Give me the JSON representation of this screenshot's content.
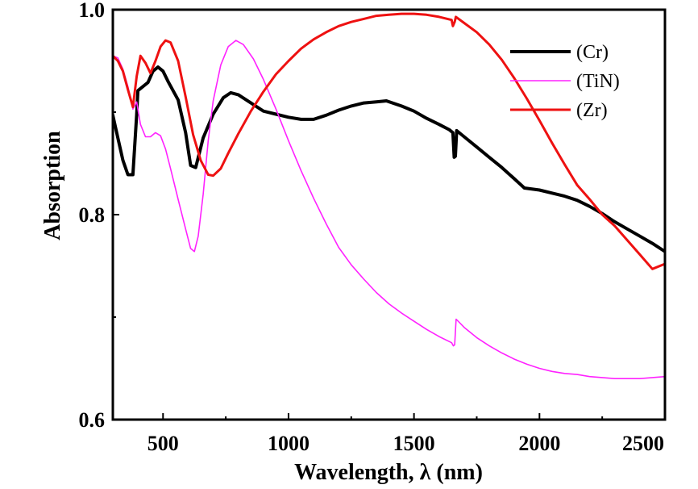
{
  "chart_data": {
    "type": "line",
    "xlabel": "Wavelength, λ (nm)",
    "ylabel": "Absorption",
    "xlim": [
      300,
      2500
    ],
    "ylim": [
      0.6,
      1.0
    ],
    "xticks": [
      500,
      1000,
      1500,
      2000,
      2500
    ],
    "xtick_labels": [
      "500",
      "1000",
      "1500",
      "2000",
      "2500"
    ],
    "yticks": [
      0.6,
      0.8,
      1.0
    ],
    "ytick_labels": [
      "0.6",
      "0.8",
      "1.0"
    ],
    "grid": false,
    "legend_position": "top-right",
    "series": [
      {
        "name": "(Cr)",
        "color": "#000000",
        "width": 4,
        "points": [
          [
            300,
            0.897
          ],
          [
            320,
            0.875
          ],
          [
            340,
            0.853
          ],
          [
            360,
            0.839
          ],
          [
            380,
            0.839
          ],
          [
            395,
            0.898
          ],
          [
            400,
            0.921
          ],
          [
            420,
            0.925
          ],
          [
            440,
            0.929
          ],
          [
            460,
            0.94
          ],
          [
            480,
            0.944
          ],
          [
            500,
            0.94
          ],
          [
            520,
            0.93
          ],
          [
            560,
            0.912
          ],
          [
            590,
            0.88
          ],
          [
            610,
            0.848
          ],
          [
            630,
            0.846
          ],
          [
            660,
            0.875
          ],
          [
            700,
            0.898
          ],
          [
            740,
            0.914
          ],
          [
            770,
            0.919
          ],
          [
            800,
            0.917
          ],
          [
            850,
            0.909
          ],
          [
            900,
            0.901
          ],
          [
            950,
            0.898
          ],
          [
            1000,
            0.895
          ],
          [
            1050,
            0.893
          ],
          [
            1100,
            0.893
          ],
          [
            1150,
            0.897
          ],
          [
            1200,
            0.902
          ],
          [
            1250,
            0.906
          ],
          [
            1300,
            0.909
          ],
          [
            1350,
            0.91
          ],
          [
            1390,
            0.911
          ],
          [
            1450,
            0.906
          ],
          [
            1500,
            0.901
          ],
          [
            1550,
            0.894
          ],
          [
            1600,
            0.888
          ],
          [
            1640,
            0.883
          ],
          [
            1655,
            0.88
          ],
          [
            1660,
            0.856
          ],
          [
            1665,
            0.857
          ],
          [
            1670,
            0.882
          ],
          [
            1700,
            0.876
          ],
          [
            1750,
            0.866
          ],
          [
            1800,
            0.856
          ],
          [
            1850,
            0.846
          ],
          [
            1900,
            0.835
          ],
          [
            1940,
            0.826
          ],
          [
            2000,
            0.824
          ],
          [
            2050,
            0.821
          ],
          [
            2100,
            0.818
          ],
          [
            2150,
            0.814
          ],
          [
            2200,
            0.808
          ],
          [
            2250,
            0.801
          ],
          [
            2300,
            0.793
          ],
          [
            2350,
            0.786
          ],
          [
            2400,
            0.779
          ],
          [
            2450,
            0.772
          ],
          [
            2500,
            0.764
          ]
        ]
      },
      {
        "name": "(TiN)",
        "color": "#ff22ff",
        "width": 1.6,
        "points": [
          [
            300,
            0.955
          ],
          [
            320,
            0.953
          ],
          [
            340,
            0.942
          ],
          [
            360,
            0.925
          ],
          [
            380,
            0.903
          ],
          [
            395,
            0.91
          ],
          [
            410,
            0.888
          ],
          [
            430,
            0.876
          ],
          [
            450,
            0.876
          ],
          [
            470,
            0.88
          ],
          [
            490,
            0.877
          ],
          [
            510,
            0.864
          ],
          [
            530,
            0.845
          ],
          [
            560,
            0.815
          ],
          [
            590,
            0.786
          ],
          [
            610,
            0.767
          ],
          [
            625,
            0.764
          ],
          [
            640,
            0.779
          ],
          [
            660,
            0.82
          ],
          [
            680,
            0.872
          ],
          [
            700,
            0.911
          ],
          [
            730,
            0.946
          ],
          [
            760,
            0.964
          ],
          [
            790,
            0.97
          ],
          [
            820,
            0.966
          ],
          [
            860,
            0.952
          ],
          [
            900,
            0.932
          ],
          [
            950,
            0.903
          ],
          [
            1000,
            0.872
          ],
          [
            1050,
            0.843
          ],
          [
            1100,
            0.816
          ],
          [
            1150,
            0.791
          ],
          [
            1200,
            0.768
          ],
          [
            1250,
            0.751
          ],
          [
            1300,
            0.737
          ],
          [
            1350,
            0.724
          ],
          [
            1400,
            0.713
          ],
          [
            1450,
            0.704
          ],
          [
            1500,
            0.696
          ],
          [
            1550,
            0.688
          ],
          [
            1600,
            0.681
          ],
          [
            1650,
            0.675
          ],
          [
            1657,
            0.672
          ],
          [
            1662,
            0.673
          ],
          [
            1668,
            0.698
          ],
          [
            1700,
            0.69
          ],
          [
            1750,
            0.68
          ],
          [
            1800,
            0.672
          ],
          [
            1850,
            0.665
          ],
          [
            1900,
            0.659
          ],
          [
            1950,
            0.654
          ],
          [
            2000,
            0.65
          ],
          [
            2050,
            0.647
          ],
          [
            2100,
            0.645
          ],
          [
            2150,
            0.644
          ],
          [
            2200,
            0.642
          ],
          [
            2250,
            0.641
          ],
          [
            2300,
            0.64
          ],
          [
            2350,
            0.64
          ],
          [
            2400,
            0.64
          ],
          [
            2450,
            0.641
          ],
          [
            2500,
            0.642
          ]
        ]
      },
      {
        "name": "(Zr)",
        "color": "#ee1111",
        "width": 3,
        "points": [
          [
            300,
            0.955
          ],
          [
            320,
            0.95
          ],
          [
            340,
            0.94
          ],
          [
            360,
            0.922
          ],
          [
            380,
            0.905
          ],
          [
            395,
            0.935
          ],
          [
            410,
            0.955
          ],
          [
            430,
            0.948
          ],
          [
            450,
            0.938
          ],
          [
            470,
            0.95
          ],
          [
            490,
            0.964
          ],
          [
            510,
            0.97
          ],
          [
            530,
            0.968
          ],
          [
            560,
            0.95
          ],
          [
            590,
            0.915
          ],
          [
            620,
            0.878
          ],
          [
            650,
            0.853
          ],
          [
            680,
            0.839
          ],
          [
            700,
            0.838
          ],
          [
            730,
            0.845
          ],
          [
            760,
            0.86
          ],
          [
            800,
            0.879
          ],
          [
            850,
            0.901
          ],
          [
            900,
            0.92
          ],
          [
            950,
            0.937
          ],
          [
            1000,
            0.95
          ],
          [
            1050,
            0.962
          ],
          [
            1100,
            0.971
          ],
          [
            1150,
            0.978
          ],
          [
            1200,
            0.984
          ],
          [
            1250,
            0.988
          ],
          [
            1300,
            0.991
          ],
          [
            1350,
            0.994
          ],
          [
            1400,
            0.995
          ],
          [
            1450,
            0.996
          ],
          [
            1500,
            0.996
          ],
          [
            1550,
            0.995
          ],
          [
            1600,
            0.993
          ],
          [
            1650,
            0.99
          ],
          [
            1655,
            0.984
          ],
          [
            1662,
            0.988
          ],
          [
            1667,
            0.993
          ],
          [
            1700,
            0.987
          ],
          [
            1750,
            0.978
          ],
          [
            1800,
            0.966
          ],
          [
            1850,
            0.951
          ],
          [
            1900,
            0.933
          ],
          [
            1950,
            0.913
          ],
          [
            2000,
            0.892
          ],
          [
            2050,
            0.87
          ],
          [
            2100,
            0.849
          ],
          [
            2150,
            0.829
          ],
          [
            2200,
            0.815
          ],
          [
            2250,
            0.8
          ],
          [
            2300,
            0.789
          ],
          [
            2350,
            0.775
          ],
          [
            2400,
            0.761
          ],
          [
            2450,
            0.747
          ],
          [
            2500,
            0.752
          ]
        ]
      }
    ]
  }
}
